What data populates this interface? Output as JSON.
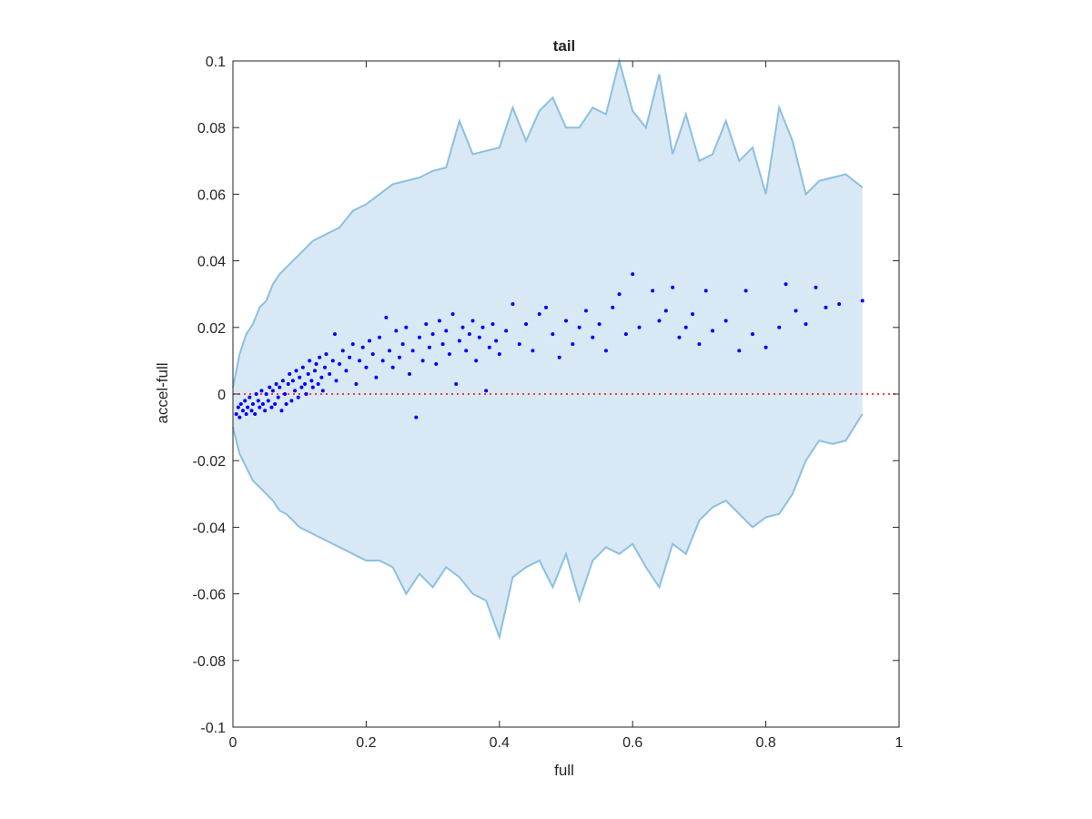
{
  "chart_data": {
    "type": "scatter",
    "title": "tail",
    "xlabel": "full",
    "ylabel": "accel-full",
    "xlim": [
      0,
      1
    ],
    "ylim": [
      -0.1,
      0.1
    ],
    "xticks": [
      0,
      0.2,
      0.4,
      0.6,
      0.8,
      1
    ],
    "xtick_labels": [
      "0",
      "0.2",
      "0.4",
      "0.6",
      "0.8",
      "1"
    ],
    "yticks": [
      0.1,
      0.08,
      0.06,
      0.04,
      0.02,
      0,
      -0.02,
      -0.04,
      -0.06,
      -0.08,
      -0.1
    ],
    "ytick_labels": [
      "0.1",
      "0.08",
      "0.06",
      "0.04",
      "0.02",
      "0",
      "-0.02",
      "-0.04",
      "-0.06",
      "-0.08",
      "-0.1"
    ],
    "grid": false,
    "reference_line": {
      "y": 0,
      "style": "dotted",
      "color": "#ff0000"
    },
    "colors": {
      "band_fill": "#d8e8f5",
      "band_line": "#8cc0e0",
      "points": "#0000ff",
      "axis": "#262626"
    },
    "band": {
      "x": [
        0,
        0.01,
        0.02,
        0.03,
        0.04,
        0.05,
        0.06,
        0.07,
        0.08,
        0.09,
        0.1,
        0.12,
        0.14,
        0.16,
        0.18,
        0.2,
        0.22,
        0.24,
        0.26,
        0.28,
        0.3,
        0.32,
        0.34,
        0.36,
        0.38,
        0.4,
        0.42,
        0.44,
        0.46,
        0.48,
        0.5,
        0.52,
        0.54,
        0.56,
        0.58,
        0.6,
        0.62,
        0.64,
        0.66,
        0.68,
        0.7,
        0.72,
        0.74,
        0.76,
        0.78,
        0.8,
        0.82,
        0.84,
        0.86,
        0.88,
        0.9,
        0.92,
        0.945
      ],
      "upper": [
        0.002,
        0.012,
        0.018,
        0.021,
        0.026,
        0.028,
        0.033,
        0.036,
        0.038,
        0.04,
        0.042,
        0.046,
        0.048,
        0.05,
        0.055,
        0.057,
        0.06,
        0.063,
        0.064,
        0.065,
        0.067,
        0.068,
        0.082,
        0.072,
        0.073,
        0.074,
        0.086,
        0.076,
        0.085,
        0.089,
        0.08,
        0.08,
        0.086,
        0.084,
        0.1,
        0.085,
        0.08,
        0.096,
        0.072,
        0.084,
        0.07,
        0.072,
        0.082,
        0.07,
        0.074,
        0.06,
        0.086,
        0.076,
        0.06,
        0.064,
        0.065,
        0.066,
        0.062
      ],
      "lower": [
        -0.01,
        -0.018,
        -0.022,
        -0.026,
        -0.028,
        -0.03,
        -0.032,
        -0.035,
        -0.036,
        -0.038,
        -0.04,
        -0.042,
        -0.044,
        -0.046,
        -0.048,
        -0.05,
        -0.05,
        -0.052,
        -0.06,
        -0.054,
        -0.058,
        -0.052,
        -0.055,
        -0.06,
        -0.062,
        -0.073,
        -0.055,
        -0.052,
        -0.05,
        -0.058,
        -0.048,
        -0.062,
        -0.05,
        -0.046,
        -0.048,
        -0.045,
        -0.052,
        -0.058,
        -0.045,
        -0.048,
        -0.038,
        -0.034,
        -0.032,
        -0.036,
        -0.04,
        -0.037,
        -0.036,
        -0.03,
        -0.02,
        -0.014,
        -0.015,
        -0.014,
        -0.006
      ]
    },
    "points": [
      [
        0.005,
        -0.006
      ],
      [
        0.008,
        -0.004
      ],
      [
        0.01,
        -0.007
      ],
      [
        0.012,
        -0.003
      ],
      [
        0.015,
        -0.005
      ],
      [
        0.018,
        -0.002
      ],
      [
        0.02,
        -0.006
      ],
      [
        0.022,
        -0.004
      ],
      [
        0.025,
        -0.001
      ],
      [
        0.028,
        -0.005
      ],
      [
        0.03,
        -0.003
      ],
      [
        0.033,
        -0.006
      ],
      [
        0.035,
        0.0
      ],
      [
        0.038,
        -0.002
      ],
      [
        0.04,
        -0.004
      ],
      [
        0.043,
        0.001
      ],
      [
        0.045,
        -0.003
      ],
      [
        0.048,
        -0.005
      ],
      [
        0.05,
        0.0
      ],
      [
        0.053,
        -0.002
      ],
      [
        0.055,
        0.002
      ],
      [
        0.058,
        -0.004
      ],
      [
        0.06,
        0.001
      ],
      [
        0.063,
        -0.003
      ],
      [
        0.065,
        0.003
      ],
      [
        0.068,
        -0.001
      ],
      [
        0.07,
        0.002
      ],
      [
        0.073,
        -0.005
      ],
      [
        0.075,
        0.004
      ],
      [
        0.078,
        0.0
      ],
      [
        0.08,
        -0.003
      ],
      [
        0.083,
        0.003
      ],
      [
        0.085,
        0.006
      ],
      [
        0.088,
        -0.002
      ],
      [
        0.09,
        0.004
      ],
      [
        0.093,
        0.001
      ],
      [
        0.095,
        0.007
      ],
      [
        0.098,
        -0.001
      ],
      [
        0.1,
        0.005
      ],
      [
        0.103,
        0.002
      ],
      [
        0.105,
        0.008
      ],
      [
        0.108,
        0.003
      ],
      [
        0.11,
        0.0
      ],
      [
        0.113,
        0.006
      ],
      [
        0.115,
        0.01
      ],
      [
        0.118,
        0.004
      ],
      [
        0.12,
        0.002
      ],
      [
        0.123,
        0.007
      ],
      [
        0.125,
        0.009
      ],
      [
        0.128,
        0.003
      ],
      [
        0.13,
        0.011
      ],
      [
        0.133,
        0.005
      ],
      [
        0.135,
        0.001
      ],
      [
        0.138,
        0.008
      ],
      [
        0.14,
        0.012
      ],
      [
        0.145,
        0.006
      ],
      [
        0.15,
        0.01
      ],
      [
        0.153,
        0.018
      ],
      [
        0.155,
        0.004
      ],
      [
        0.16,
        0.009
      ],
      [
        0.165,
        0.013
      ],
      [
        0.17,
        0.007
      ],
      [
        0.175,
        0.011
      ],
      [
        0.18,
        0.015
      ],
      [
        0.185,
        0.003
      ],
      [
        0.19,
        0.01
      ],
      [
        0.195,
        0.014
      ],
      [
        0.2,
        0.008
      ],
      [
        0.205,
        0.016
      ],
      [
        0.21,
        0.012
      ],
      [
        0.215,
        0.005
      ],
      [
        0.22,
        0.017
      ],
      [
        0.225,
        0.01
      ],
      [
        0.23,
        0.023
      ],
      [
        0.235,
        0.013
      ],
      [
        0.24,
        0.008
      ],
      [
        0.245,
        0.019
      ],
      [
        0.25,
        0.011
      ],
      [
        0.255,
        0.015
      ],
      [
        0.26,
        0.02
      ],
      [
        0.265,
        0.006
      ],
      [
        0.27,
        0.013
      ],
      [
        0.275,
        -0.007
      ],
      [
        0.28,
        0.017
      ],
      [
        0.285,
        0.01
      ],
      [
        0.29,
        0.021
      ],
      [
        0.295,
        0.014
      ],
      [
        0.3,
        0.018
      ],
      [
        0.305,
        0.009
      ],
      [
        0.31,
        0.022
      ],
      [
        0.315,
        0.015
      ],
      [
        0.32,
        0.019
      ],
      [
        0.325,
        0.012
      ],
      [
        0.33,
        0.024
      ],
      [
        0.335,
        0.003
      ],
      [
        0.34,
        0.016
      ],
      [
        0.345,
        0.02
      ],
      [
        0.35,
        0.013
      ],
      [
        0.355,
        0.018
      ],
      [
        0.36,
        0.022
      ],
      [
        0.365,
        0.01
      ],
      [
        0.37,
        0.017
      ],
      [
        0.375,
        0.02
      ],
      [
        0.38,
        0.001
      ],
      [
        0.385,
        0.014
      ],
      [
        0.39,
        0.021
      ],
      [
        0.395,
        0.016
      ],
      [
        0.4,
        0.012
      ],
      [
        0.41,
        0.019
      ],
      [
        0.42,
        0.027
      ],
      [
        0.43,
        0.015
      ],
      [
        0.44,
        0.021
      ],
      [
        0.45,
        0.013
      ],
      [
        0.46,
        0.024
      ],
      [
        0.47,
        0.026
      ],
      [
        0.48,
        0.018
      ],
      [
        0.49,
        0.011
      ],
      [
        0.5,
        0.022
      ],
      [
        0.51,
        0.015
      ],
      [
        0.52,
        0.02
      ],
      [
        0.53,
        0.025
      ],
      [
        0.54,
        0.017
      ],
      [
        0.55,
        0.021
      ],
      [
        0.56,
        0.013
      ],
      [
        0.57,
        0.026
      ],
      [
        0.58,
        0.03
      ],
      [
        0.59,
        0.018
      ],
      [
        0.6,
        0.036
      ],
      [
        0.61,
        0.02
      ],
      [
        0.63,
        0.031
      ],
      [
        0.64,
        0.022
      ],
      [
        0.65,
        0.025
      ],
      [
        0.66,
        0.032
      ],
      [
        0.67,
        0.017
      ],
      [
        0.68,
        0.02
      ],
      [
        0.69,
        0.024
      ],
      [
        0.7,
        0.015
      ],
      [
        0.71,
        0.031
      ],
      [
        0.72,
        0.019
      ],
      [
        0.74,
        0.022
      ],
      [
        0.76,
        0.013
      ],
      [
        0.77,
        0.031
      ],
      [
        0.78,
        0.018
      ],
      [
        0.8,
        0.014
      ],
      [
        0.82,
        0.02
      ],
      [
        0.83,
        0.033
      ],
      [
        0.845,
        0.025
      ],
      [
        0.86,
        0.021
      ],
      [
        0.875,
        0.032
      ],
      [
        0.89,
        0.026
      ],
      [
        0.91,
        0.027
      ],
      [
        0.945,
        0.028
      ]
    ]
  }
}
